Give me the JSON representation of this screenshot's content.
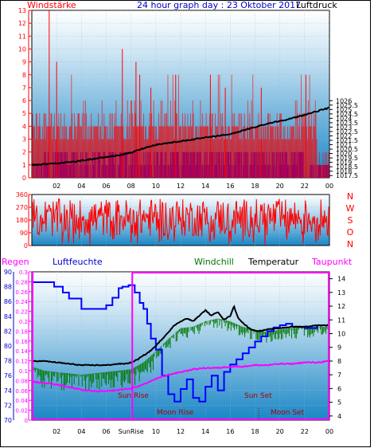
{
  "colors": {
    "wind": "#ff0000",
    "gust": "#ff0000",
    "avg_wind": "#0000ff",
    "pressure": "#000000",
    "direction": "#ff0000",
    "rain_axis": "#ff00ff",
    "humidity": "#0000ff",
    "windchill": "#007700",
    "temperature": "#000000",
    "dewpoint": "#ff00ff",
    "plot_bg_top": "#ffffff",
    "plot_bg_bottom": "#1a86c6"
  },
  "chart_data": [
    {
      "type": "line",
      "id": "wind_pressure",
      "title": "24 hour graph day : 23 Oktober 2017",
      "left_label": "Windstärke",
      "right_label": "Luftdruck",
      "x_ticks": [
        "02",
        "04",
        "06",
        "08",
        "10",
        "12",
        "14",
        "16",
        "18",
        "20",
        "22",
        "00"
      ],
      "x_range_hours": [
        0,
        24
      ],
      "left_axis": {
        "range": [
          0,
          13
        ],
        "ticks": [
          0,
          1,
          2,
          3,
          4,
          5,
          6,
          7,
          8,
          9,
          10,
          11,
          12,
          13
        ]
      },
      "right_axis": {
        "range": [
          1017.25,
          1036.25
        ],
        "ticks": [
          "1017.5",
          "1018",
          "1018.5",
          "1019",
          "1019.5",
          "1020",
          "1020.5",
          "1021",
          "1021.5",
          "1022",
          "1022.5",
          "1023",
          "1023.5",
          "1024",
          "1024.5",
          "1025",
          "1025.5",
          "1026"
        ]
      },
      "pressure_series": {
        "x": [
          0,
          1,
          2,
          3,
          4,
          5,
          6,
          7,
          8,
          9,
          10,
          11,
          12,
          13,
          14,
          15,
          16,
          17,
          18,
          19,
          20,
          21,
          22,
          23,
          24
        ],
        "y": [
          1018.7,
          1018.8,
          1018.9,
          1019.0,
          1019.2,
          1019.4,
          1019.6,
          1019.8,
          1020.1,
          1020.6,
          1021.0,
          1021.2,
          1021.4,
          1021.6,
          1021.8,
          1022.0,
          1022.2,
          1022.6,
          1023.0,
          1023.4,
          1023.7,
          1024.0,
          1024.4,
          1024.8,
          1025.2
        ]
      },
      "gust_levels": [
        3,
        4,
        5
      ],
      "avg_wind_levels": [
        1,
        2
      ]
    },
    {
      "type": "line",
      "id": "wind_direction",
      "left_axis": {
        "range": [
          0,
          360
        ],
        "ticks": [
          "0",
          "90",
          "180",
          "270",
          "360"
        ]
      },
      "compass_labels": [
        "N",
        "W",
        "S",
        "O",
        "N"
      ],
      "typical_range_deg": [
        60,
        330
      ]
    },
    {
      "type": "line",
      "id": "temp_humidity",
      "labels": {
        "rain": "Regen",
        "humidity": "Luftfeuchte",
        "windchill": "Windchill",
        "temperature": "Temperatur",
        "dewpoint": "Taupunkt"
      },
      "x_ticks": [
        "02",
        "04",
        "06",
        "SunRise",
        "10",
        "12",
        "14",
        "16",
        "18",
        "20",
        "22",
        "00"
      ],
      "humidity_axis": {
        "range": [
          70,
          90
        ],
        "ticks": [
          "70",
          "72",
          "74",
          "76",
          "78",
          "80",
          "82",
          "84",
          "86",
          "88",
          "90"
        ]
      },
      "rain_axis": {
        "range": [
          0,
          0.3
        ],
        "ticks": [
          "0",
          "0.02",
          "0.04",
          "0.06",
          "0.08",
          "0.1",
          "0.12",
          "0.14",
          "0.16",
          "0.18",
          "0.2",
          "0.22",
          "0.24",
          "0.26",
          "0.28",
          "0.3"
        ]
      },
      "temp_axis": {
        "range": [
          3.7,
          14.5
        ],
        "ticks": [
          "4",
          "5",
          "6",
          "7",
          "8",
          "9",
          "10",
          "11",
          "12",
          "13",
          "14"
        ]
      },
      "humidity_series": {
        "x": [
          0,
          1,
          1.8,
          2.5,
          3,
          4,
          5,
          6,
          6.5,
          7,
          7.3,
          7.8,
          8.3,
          8.7,
          9,
          9.3,
          9.6,
          10,
          10.5,
          11,
          11.5,
          12,
          12.5,
          13,
          13.5,
          14,
          14.5,
          15,
          15.5,
          16,
          16.5,
          17,
          17.5,
          18,
          18.5,
          19,
          19.5,
          20,
          20.5,
          21,
          22,
          23,
          24
        ],
        "y": [
          88.6,
          88.6,
          88.0,
          87.2,
          86.4,
          85.0,
          85.0,
          85.5,
          86.5,
          87.8,
          88.0,
          88.2,
          87.2,
          85.8,
          85.0,
          83.0,
          81.0,
          79.5,
          76.0,
          73.5,
          72.5,
          74.2,
          75.5,
          73.0,
          72.5,
          74.5,
          76.0,
          74.0,
          76.5,
          77.5,
          78.2,
          79.0,
          79.8,
          80.6,
          81.3,
          82.0,
          82.5,
          82.8,
          83.0,
          82.6,
          82.4,
          82.8,
          83.2
        ]
      },
      "temperature_series": {
        "x": [
          0,
          1,
          2,
          3,
          4,
          5,
          6,
          7,
          7.5,
          8,
          8.5,
          9,
          9.5,
          10,
          10.5,
          11,
          11.5,
          12,
          12.5,
          13,
          13.5,
          14,
          14.5,
          15,
          15.5,
          16,
          16.3,
          16.6,
          17,
          17.5,
          18,
          18.5,
          19,
          20,
          21,
          22,
          23,
          24
        ],
        "y": [
          8.0,
          8.0,
          7.9,
          7.8,
          7.7,
          7.7,
          7.7,
          7.8,
          7.8,
          7.9,
          8.1,
          8.4,
          8.7,
          9.1,
          9.6,
          10.1,
          10.6,
          10.9,
          11.1,
          10.9,
          11.3,
          11.7,
          11.3,
          11.6,
          11.0,
          11.3,
          12.0,
          11.2,
          10.8,
          10.4,
          10.2,
          10.2,
          10.3,
          10.4,
          10.5,
          10.5,
          10.6,
          10.6
        ]
      },
      "windchill_series": {
        "x": [
          0,
          1,
          2,
          3,
          4,
          5,
          6,
          7,
          8,
          9,
          10,
          11,
          12,
          13,
          14,
          15,
          16,
          17,
          18,
          19,
          20,
          21,
          22,
          23,
          24
        ],
        "y": [
          7.6,
          7.3,
          7.2,
          7.1,
          7.0,
          7.1,
          7.2,
          7.3,
          7.4,
          7.9,
          8.7,
          9.6,
          10.4,
          10.5,
          10.9,
          11.1,
          10.9,
          10.5,
          10.3,
          10.1,
          10.3,
          10.4,
          10.5,
          10.5,
          10.5
        ]
      },
      "dewpoint_series": {
        "x": [
          0,
          1,
          2,
          3,
          4,
          5,
          6,
          7,
          8,
          9,
          10,
          11,
          12,
          13,
          14,
          15,
          16,
          17,
          18,
          19,
          20,
          21,
          22,
          23,
          24
        ],
        "y": [
          6.5,
          6.4,
          6.3,
          6.1,
          5.9,
          5.8,
          5.8,
          5.9,
          6.0,
          6.3,
          6.7,
          7.0,
          7.2,
          7.4,
          7.5,
          7.5,
          7.6,
          7.6,
          7.7,
          7.7,
          7.8,
          7.8,
          7.9,
          7.9,
          8.0
        ]
      },
      "sun_rise_hour": 8.1,
      "moon_set_hour": 18.3,
      "annotations": {
        "sunrise": "Sun Rise",
        "moonrise": "Moon Rise",
        "sunset": "Sun Set",
        "moonset": "Moon Set"
      }
    }
  ]
}
